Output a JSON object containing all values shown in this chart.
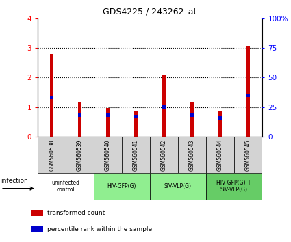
{
  "title": "GDS4225 / 243262_at",
  "samples": [
    "GSM560538",
    "GSM560539",
    "GSM560540",
    "GSM560541",
    "GSM560542",
    "GSM560543",
    "GSM560544",
    "GSM560545"
  ],
  "transformed_counts": [
    2.78,
    1.17,
    0.97,
    0.85,
    2.1,
    1.17,
    0.87,
    3.07
  ],
  "percentile_ranks_pct": [
    33,
    18,
    18,
    17,
    25,
    18,
    16,
    35
  ],
  "bar_color": "#cc0000",
  "percentile_color": "#0000cc",
  "ylim_left": [
    0,
    4
  ],
  "ylim_right": [
    0,
    100
  ],
  "yticks_left": [
    0,
    1,
    2,
    3,
    4
  ],
  "yticks_right": [
    0,
    25,
    50,
    75,
    100
  ],
  "ytick_labels_right": [
    "0",
    "25",
    "50",
    "75",
    "100%"
  ],
  "groups": [
    {
      "label": "uninfected\ncontrol",
      "start": 0,
      "end": 2,
      "color": "#ffffff"
    },
    {
      "label": "HIV-GFP(G)",
      "start": 2,
      "end": 4,
      "color": "#90ee90"
    },
    {
      "label": "SIV-VLP(G)",
      "start": 4,
      "end": 6,
      "color": "#90ee90"
    },
    {
      "label": "HIV-GFP(G) +\nSIV-VLP(G)",
      "start": 6,
      "end": 8,
      "color": "#66cc66"
    }
  ],
  "infection_label": "infection",
  "legend_items": [
    {
      "color": "#cc0000",
      "label": "transformed count"
    },
    {
      "color": "#0000cc",
      "label": "percentile rank within the sample"
    }
  ],
  "bar_width": 0.12,
  "sample_bg_color": "#d3d3d3",
  "grid_color": "#000000"
}
